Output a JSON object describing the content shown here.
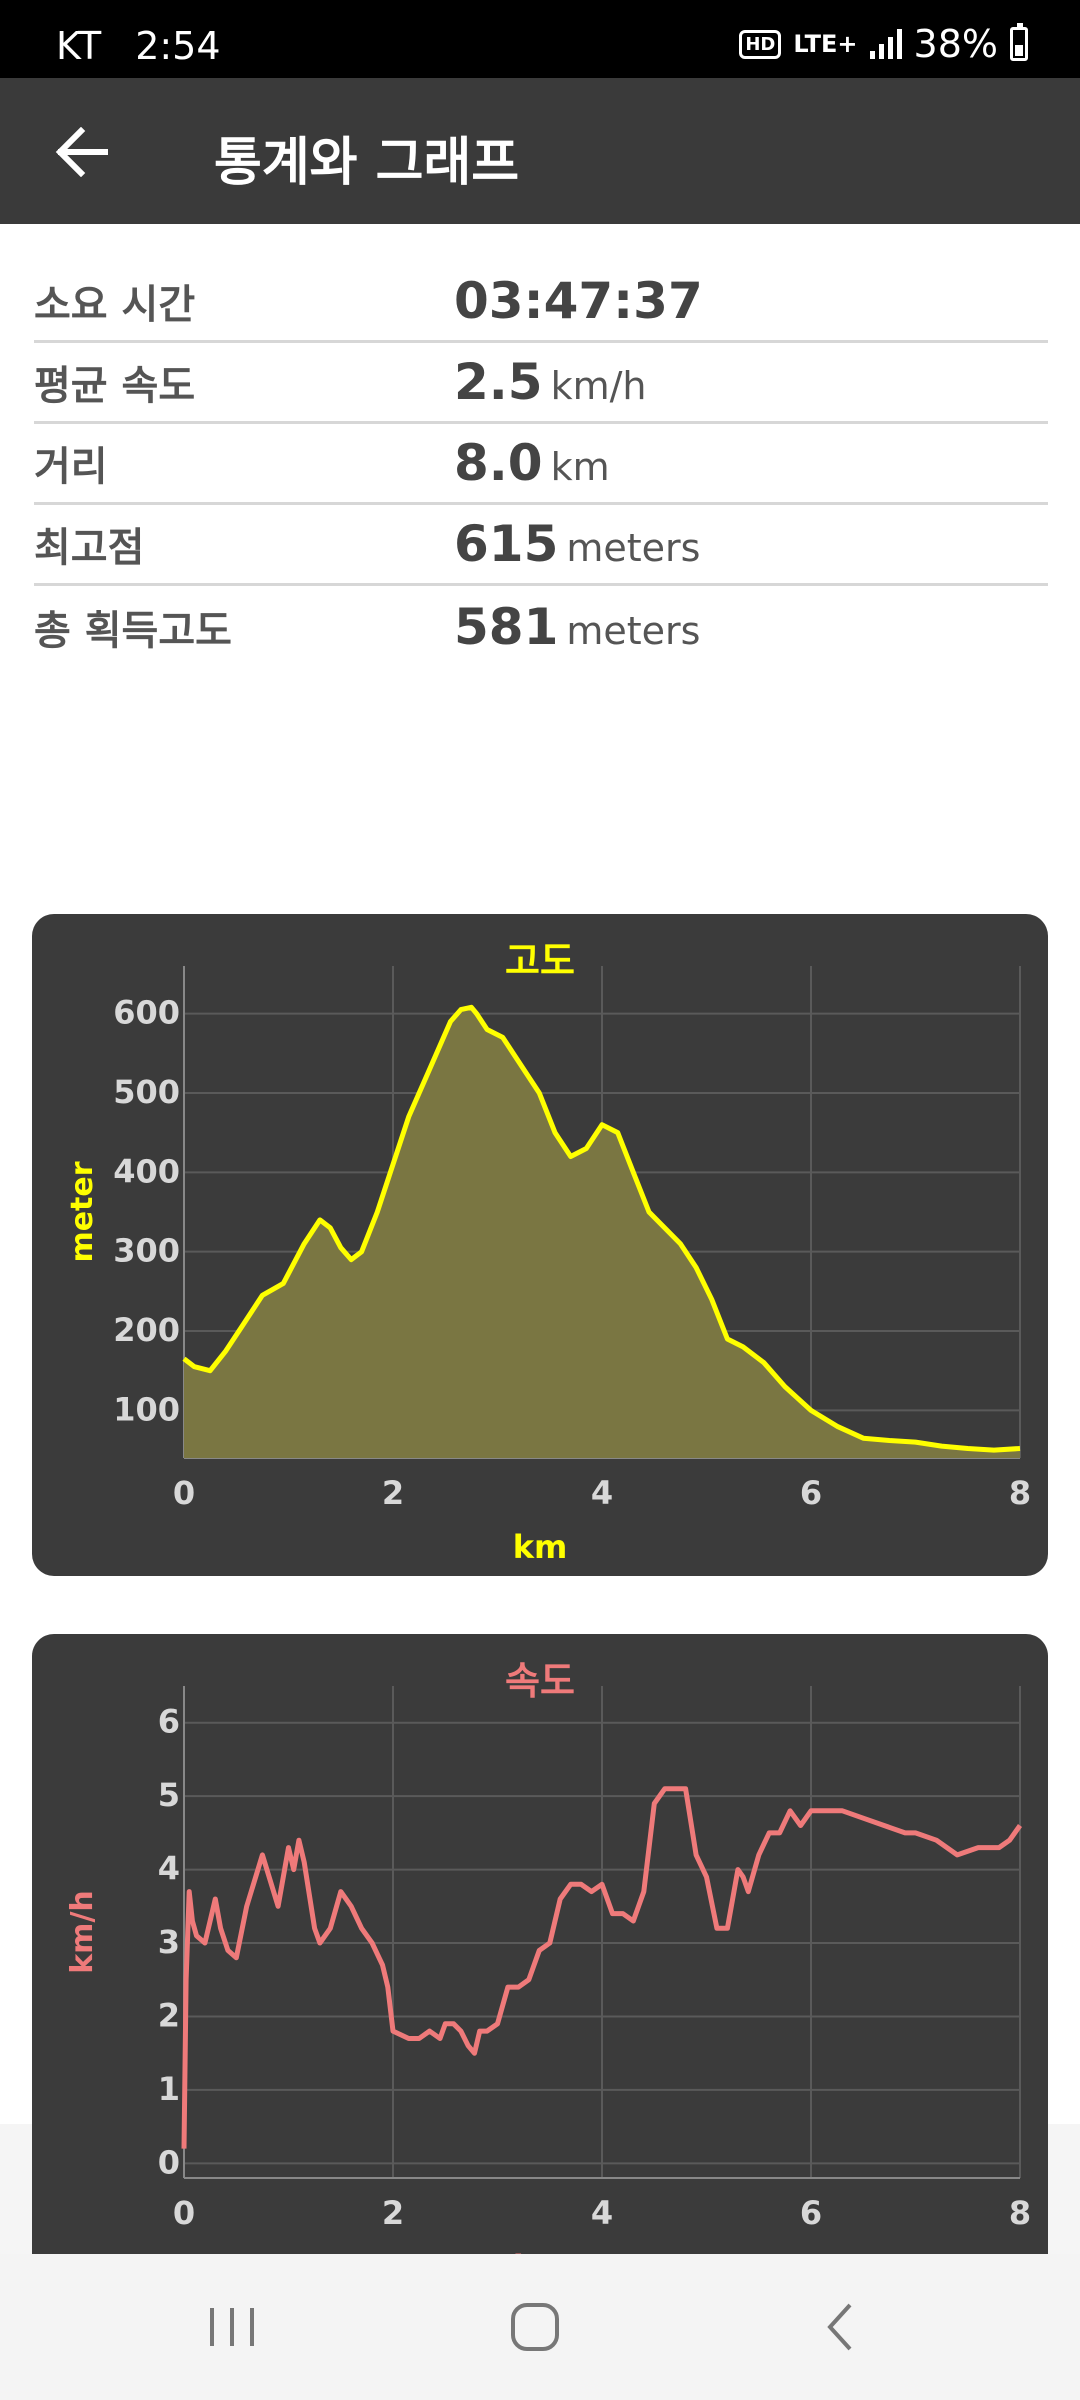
{
  "status_bar": {
    "carrier": "KT",
    "time": "2:54",
    "hd": "HD",
    "network": "LTE+",
    "battery": "38%"
  },
  "app_bar": {
    "title": "통계와 그래프"
  },
  "stats": [
    {
      "label": "소요 시간",
      "value": "03:47:37",
      "unit": ""
    },
    {
      "label": "평균 속도",
      "value": "2.5",
      "unit": "km/h"
    },
    {
      "label": "거리",
      "value": "8.0",
      "unit": "km"
    },
    {
      "label": "최고점",
      "value": "615",
      "unit": "meters"
    },
    {
      "label": "총 획득고도",
      "value": "581",
      "unit": "meters"
    }
  ],
  "chart_data": [
    {
      "type": "area",
      "title": "고도",
      "xlabel": "km",
      "ylabel": "meter",
      "xlim": [
        0,
        8
      ],
      "ylim": [
        40,
        660
      ],
      "x_ticks": [
        "0",
        "2",
        "4",
        "6",
        "8"
      ],
      "y_ticks": [
        "100",
        "200",
        "300",
        "400",
        "500",
        "600"
      ],
      "y_tick_values": [
        100,
        200,
        300,
        400,
        500,
        600
      ],
      "grid": true,
      "color": "#ffff00",
      "fill": "#7a7642",
      "x": [
        0,
        0.1,
        0.25,
        0.4,
        0.55,
        0.75,
        0.95,
        1.15,
        1.3,
        1.4,
        1.5,
        1.6,
        1.7,
        1.85,
        2.0,
        2.15,
        2.35,
        2.55,
        2.65,
        2.75,
        2.8,
        2.9,
        3.05,
        3.2,
        3.4,
        3.55,
        3.7,
        3.85,
        4.0,
        4.15,
        4.3,
        4.45,
        4.6,
        4.75,
        4.9,
        5.05,
        5.2,
        5.35,
        5.55,
        5.75,
        6.0,
        6.25,
        6.5,
        6.75,
        7.0,
        7.25,
        7.5,
        7.75,
        8.0
      ],
      "y": [
        165,
        155,
        150,
        175,
        205,
        245,
        260,
        310,
        340,
        330,
        305,
        290,
        300,
        350,
        410,
        470,
        530,
        590,
        605,
        608,
        600,
        580,
        570,
        540,
        500,
        450,
        420,
        430,
        460,
        450,
        400,
        350,
        330,
        310,
        280,
        240,
        190,
        180,
        160,
        130,
        100,
        80,
        65,
        62,
        60,
        55,
        52,
        50,
        52
      ]
    },
    {
      "type": "line",
      "title": "속도",
      "xlabel": "km",
      "ylabel": "km/h",
      "xlim": [
        0,
        8
      ],
      "ylim": [
        -0.2,
        6.5
      ],
      "x_ticks": [
        "0",
        "2",
        "4",
        "6",
        "8"
      ],
      "y_ticks": [
        "0",
        "1",
        "2",
        "3",
        "4",
        "5",
        "6"
      ],
      "y_tick_values": [
        0,
        1,
        2,
        3,
        4,
        5,
        6
      ],
      "grid": true,
      "color": "#ef7a7a",
      "x": [
        0,
        0.02,
        0.05,
        0.08,
        0.12,
        0.2,
        0.3,
        0.35,
        0.42,
        0.5,
        0.6,
        0.75,
        0.9,
        0.95,
        1.0,
        1.05,
        1.1,
        1.15,
        1.25,
        1.3,
        1.4,
        1.5,
        1.6,
        1.7,
        1.8,
        1.9,
        1.95,
        2.0,
        2.15,
        2.25,
        2.35,
        2.45,
        2.5,
        2.58,
        2.65,
        2.72,
        2.78,
        2.83,
        2.9,
        3.0,
        3.1,
        3.2,
        3.3,
        3.4,
        3.5,
        3.6,
        3.7,
        3.8,
        3.9,
        4.0,
        4.1,
        4.2,
        4.3,
        4.4,
        4.5,
        4.6,
        4.7,
        4.8,
        4.9,
        5.0,
        5.1,
        5.2,
        5.3,
        5.35,
        5.4,
        5.5,
        5.6,
        5.7,
        5.8,
        5.9,
        6.0,
        6.1,
        6.3,
        6.5,
        6.7,
        6.9,
        7.0,
        7.2,
        7.4,
        7.6,
        7.7,
        7.8,
        7.9,
        8.0
      ],
      "y": [
        0.2,
        2.5,
        3.7,
        3.3,
        3.1,
        3.0,
        3.6,
        3.2,
        2.9,
        2.8,
        3.5,
        4.2,
        3.5,
        3.9,
        4.3,
        4.0,
        4.4,
        4.1,
        3.2,
        3.0,
        3.2,
        3.7,
        3.5,
        3.2,
        3.0,
        2.7,
        2.4,
        1.8,
        1.7,
        1.7,
        1.8,
        1.7,
        1.9,
        1.9,
        1.8,
        1.6,
        1.5,
        1.8,
        1.8,
        1.9,
        2.4,
        2.4,
        2.5,
        2.9,
        3.0,
        3.6,
        3.8,
        3.8,
        3.7,
        3.8,
        3.4,
        3.4,
        3.3,
        3.7,
        4.9,
        5.1,
        5.1,
        5.1,
        4.2,
        3.9,
        3.2,
        3.2,
        4.0,
        3.9,
        3.7,
        4.2,
        4.5,
        4.5,
        4.8,
        4.6,
        4.8,
        4.8,
        4.8,
        4.7,
        4.6,
        4.5,
        4.5,
        4.4,
        4.2,
        4.3,
        4.3,
        4.3,
        4.4,
        4.6
      ]
    }
  ],
  "nav_bar": {
    "recents": "recents",
    "home": "home",
    "back": "back"
  }
}
